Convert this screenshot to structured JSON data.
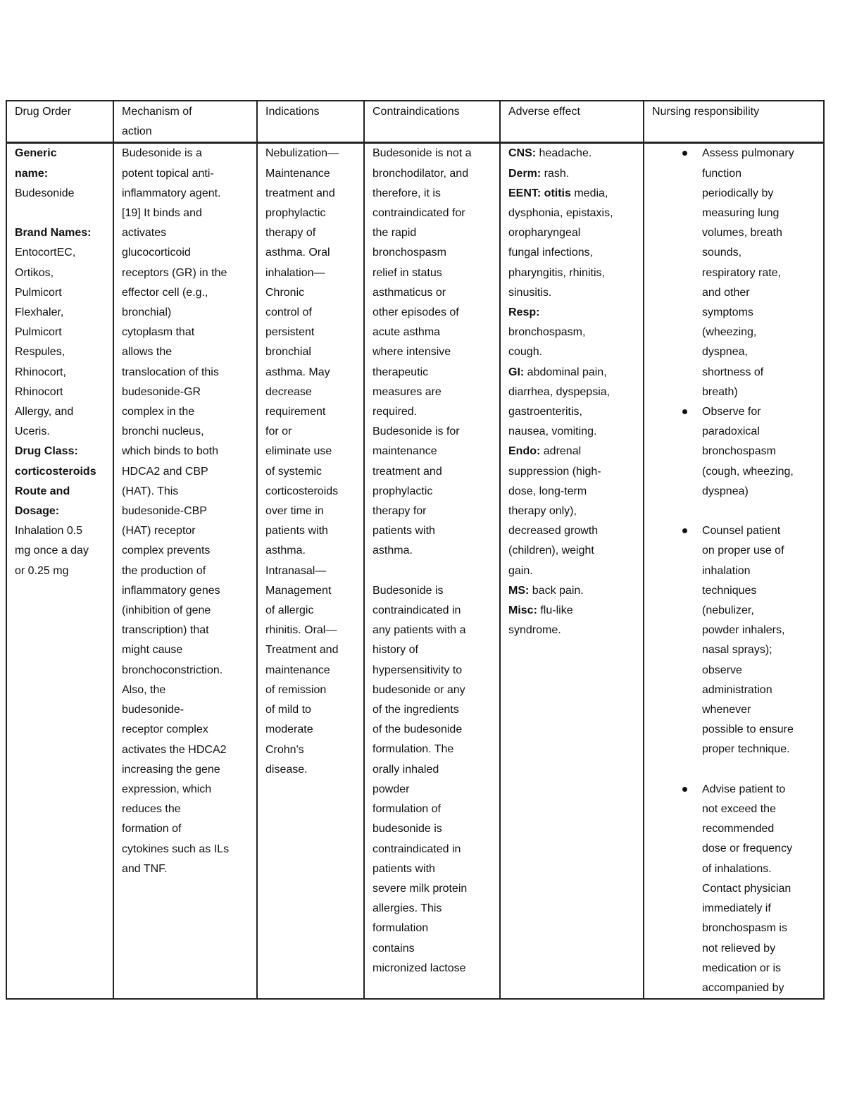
{
  "headers": [
    [
      "Drug Order"
    ],
    [
      "Mechanism of",
      "action"
    ],
    [
      "Indications"
    ],
    [
      "Contraindications"
    ],
    [
      "Adverse effect"
    ],
    [
      "Nursing responsibility"
    ]
  ],
  "drug_order": [
    {
      "b": "Generic"
    },
    {
      "b": "name:"
    },
    {
      "t": "Budesonide"
    },
    {
      "t": ""
    },
    {
      "b": "Brand Names:"
    },
    {
      "t": "EntocortEC,"
    },
    {
      "t": "Ortikos,"
    },
    {
      "t": "Pulmicort"
    },
    {
      "t": "Flexhaler,"
    },
    {
      "t": "Pulmicort"
    },
    {
      "t": "Respules,"
    },
    {
      "t": "Rhinocort,"
    },
    {
      "t": "Rhinocort"
    },
    {
      "t": "Allergy, and"
    },
    {
      "t": "Uceris."
    },
    {
      "b": "Drug Class:"
    },
    {
      "b": "corticosteroids"
    },
    {
      "b": "Route and"
    },
    {
      "b": "Dosage:"
    },
    {
      "t": "Inhalation 0.5"
    },
    {
      "t": "mg once a day"
    },
    {
      "t": "or 0.25 mg"
    }
  ],
  "mechanism": [
    "Budesonide is a",
    "potent topical anti-",
    "inflammatory agent.",
    "[19] It binds and",
    "activates",
    "glucocorticoid",
    "receptors (GR) in the",
    "effector cell (e.g.,",
    "bronchial)",
    "cytoplasm that",
    "allows the",
    "translocation of this",
    "budesonide-GR",
    "complex in the",
    "bronchi nucleus,",
    "which binds to both",
    "HDCA2 and CBP",
    "(HAT). This",
    "budesonide-CBP",
    "(HAT) receptor",
    "complex prevents",
    "the production of",
    "inflammatory genes",
    "(inhibition of gene",
    "transcription) that",
    "might cause",
    "bronchoconstriction.",
    "Also, the",
    "budesonide-",
    "receptor complex",
    "activates the HDCA2",
    "increasing the gene",
    "expression, which",
    "reduces the",
    "formation of",
    "cytokines such as ILs",
    "and TNF."
  ],
  "indications": [
    "Nebulization—",
    "Maintenance",
    "treatment and",
    "prophylactic",
    "therapy of",
    "asthma. Oral",
    "inhalation—",
    "Chronic",
    "control of",
    "persistent",
    "bronchial",
    "asthma. May",
    "decrease",
    "requirement",
    "for or",
    "eliminate use",
    "of systemic",
    "corticosteroids",
    "over time in",
    "patients with",
    "asthma.",
    "Intranasal—",
    "Management",
    "of allergic",
    "rhinitis. Oral—",
    "Treatment and",
    "maintenance",
    "of remission",
    "of mild to",
    "moderate",
    "Crohn's",
    "disease."
  ],
  "contraindications": [
    "Budesonide is not a",
    "bronchodilator, and",
    "therefore, it is",
    "contraindicated for",
    "the rapid",
    "bronchospasm",
    "relief in status",
    "asthmaticus or",
    "other episodes of",
    "acute asthma",
    "where intensive",
    "therapeutic",
    "measures are",
    "required.",
    "Budesonide is for",
    "maintenance",
    "treatment and",
    "prophylactic",
    "therapy for",
    "patients with",
    "asthma.",
    "",
    "Budesonide is",
    "contraindicated in",
    "any patients with a",
    "history of",
    "hypersensitivity to",
    "budesonide or any",
    "of the ingredients",
    "of the budesonide",
    "formulation. The",
    "orally inhaled",
    "powder",
    "formulation of",
    "budesonide is",
    "contraindicated in",
    "patients with",
    "severe milk protein",
    "allergies. This",
    "formulation",
    "contains",
    "micronized lactose"
  ],
  "adverse": [
    {
      "b": "CNS:",
      "t": " headache."
    },
    {
      "b": "Derm:",
      "t": " rash."
    },
    {
      "b": "EENT: otitis",
      "t": " media,"
    },
    {
      "t": "dysphonia, epistaxis,"
    },
    {
      "t": "oropharyngeal"
    },
    {
      "t": "fungal infections,"
    },
    {
      "t": "pharyngitis, rhinitis,"
    },
    {
      "t": "sinusitis."
    },
    {
      "b": "Resp:"
    },
    {
      "t": "bronchospasm,"
    },
    {
      "t": "cough."
    },
    {
      "b": " GI:",
      "t": " abdominal pain,"
    },
    {
      "t": "diarrhea, dyspepsia,"
    },
    {
      "t": "gastroenteritis,"
    },
    {
      "t": "nausea, vomiting."
    },
    {
      "b": "Endo:",
      "t": " adrenal"
    },
    {
      "t": "suppression (high-"
    },
    {
      "t": "dose, long-term"
    },
    {
      "t": "therapy only),"
    },
    {
      "t": "decreased growth"
    },
    {
      "t": "(children), weight"
    },
    {
      "t": "gain."
    },
    {
      "b": " MS:",
      "t": " back pain."
    },
    {
      "b": " Misc:",
      "t": " flu-like"
    },
    {
      "t": " syndrome."
    }
  ],
  "nursing": [
    {
      "lines": [
        "Assess pulmonary",
        "function",
        "periodically by",
        "measuring lung",
        "volumes, breath",
        "sounds,",
        "respiratory rate,",
        "and other",
        "symptoms",
        "(wheezing,",
        "dyspnea,",
        "shortness of",
        "breath)"
      ],
      "gap_after": false
    },
    {
      "lines": [
        "Observe for",
        "paradoxical",
        "bronchospasm",
        "(cough, wheezing,",
        "dyspnea)"
      ],
      "gap_after": true
    },
    {
      "lines": [
        "Counsel patient",
        "on proper use of",
        "inhalation",
        "techniques",
        "(nebulizer,",
        "powder inhalers,",
        "nasal sprays);",
        "observe",
        "administration",
        "whenever",
        "possible to ensure",
        "proper technique."
      ],
      "gap_after": true
    },
    {
      "lines": [
        "Advise patient to",
        "not exceed the",
        "recommended",
        "dose or frequency",
        "of inhalations.",
        "Contact physician",
        "immediately if",
        "bronchospasm is",
        "not relieved by",
        "medication or is",
        "accompanied by"
      ],
      "gap_after": false
    }
  ]
}
